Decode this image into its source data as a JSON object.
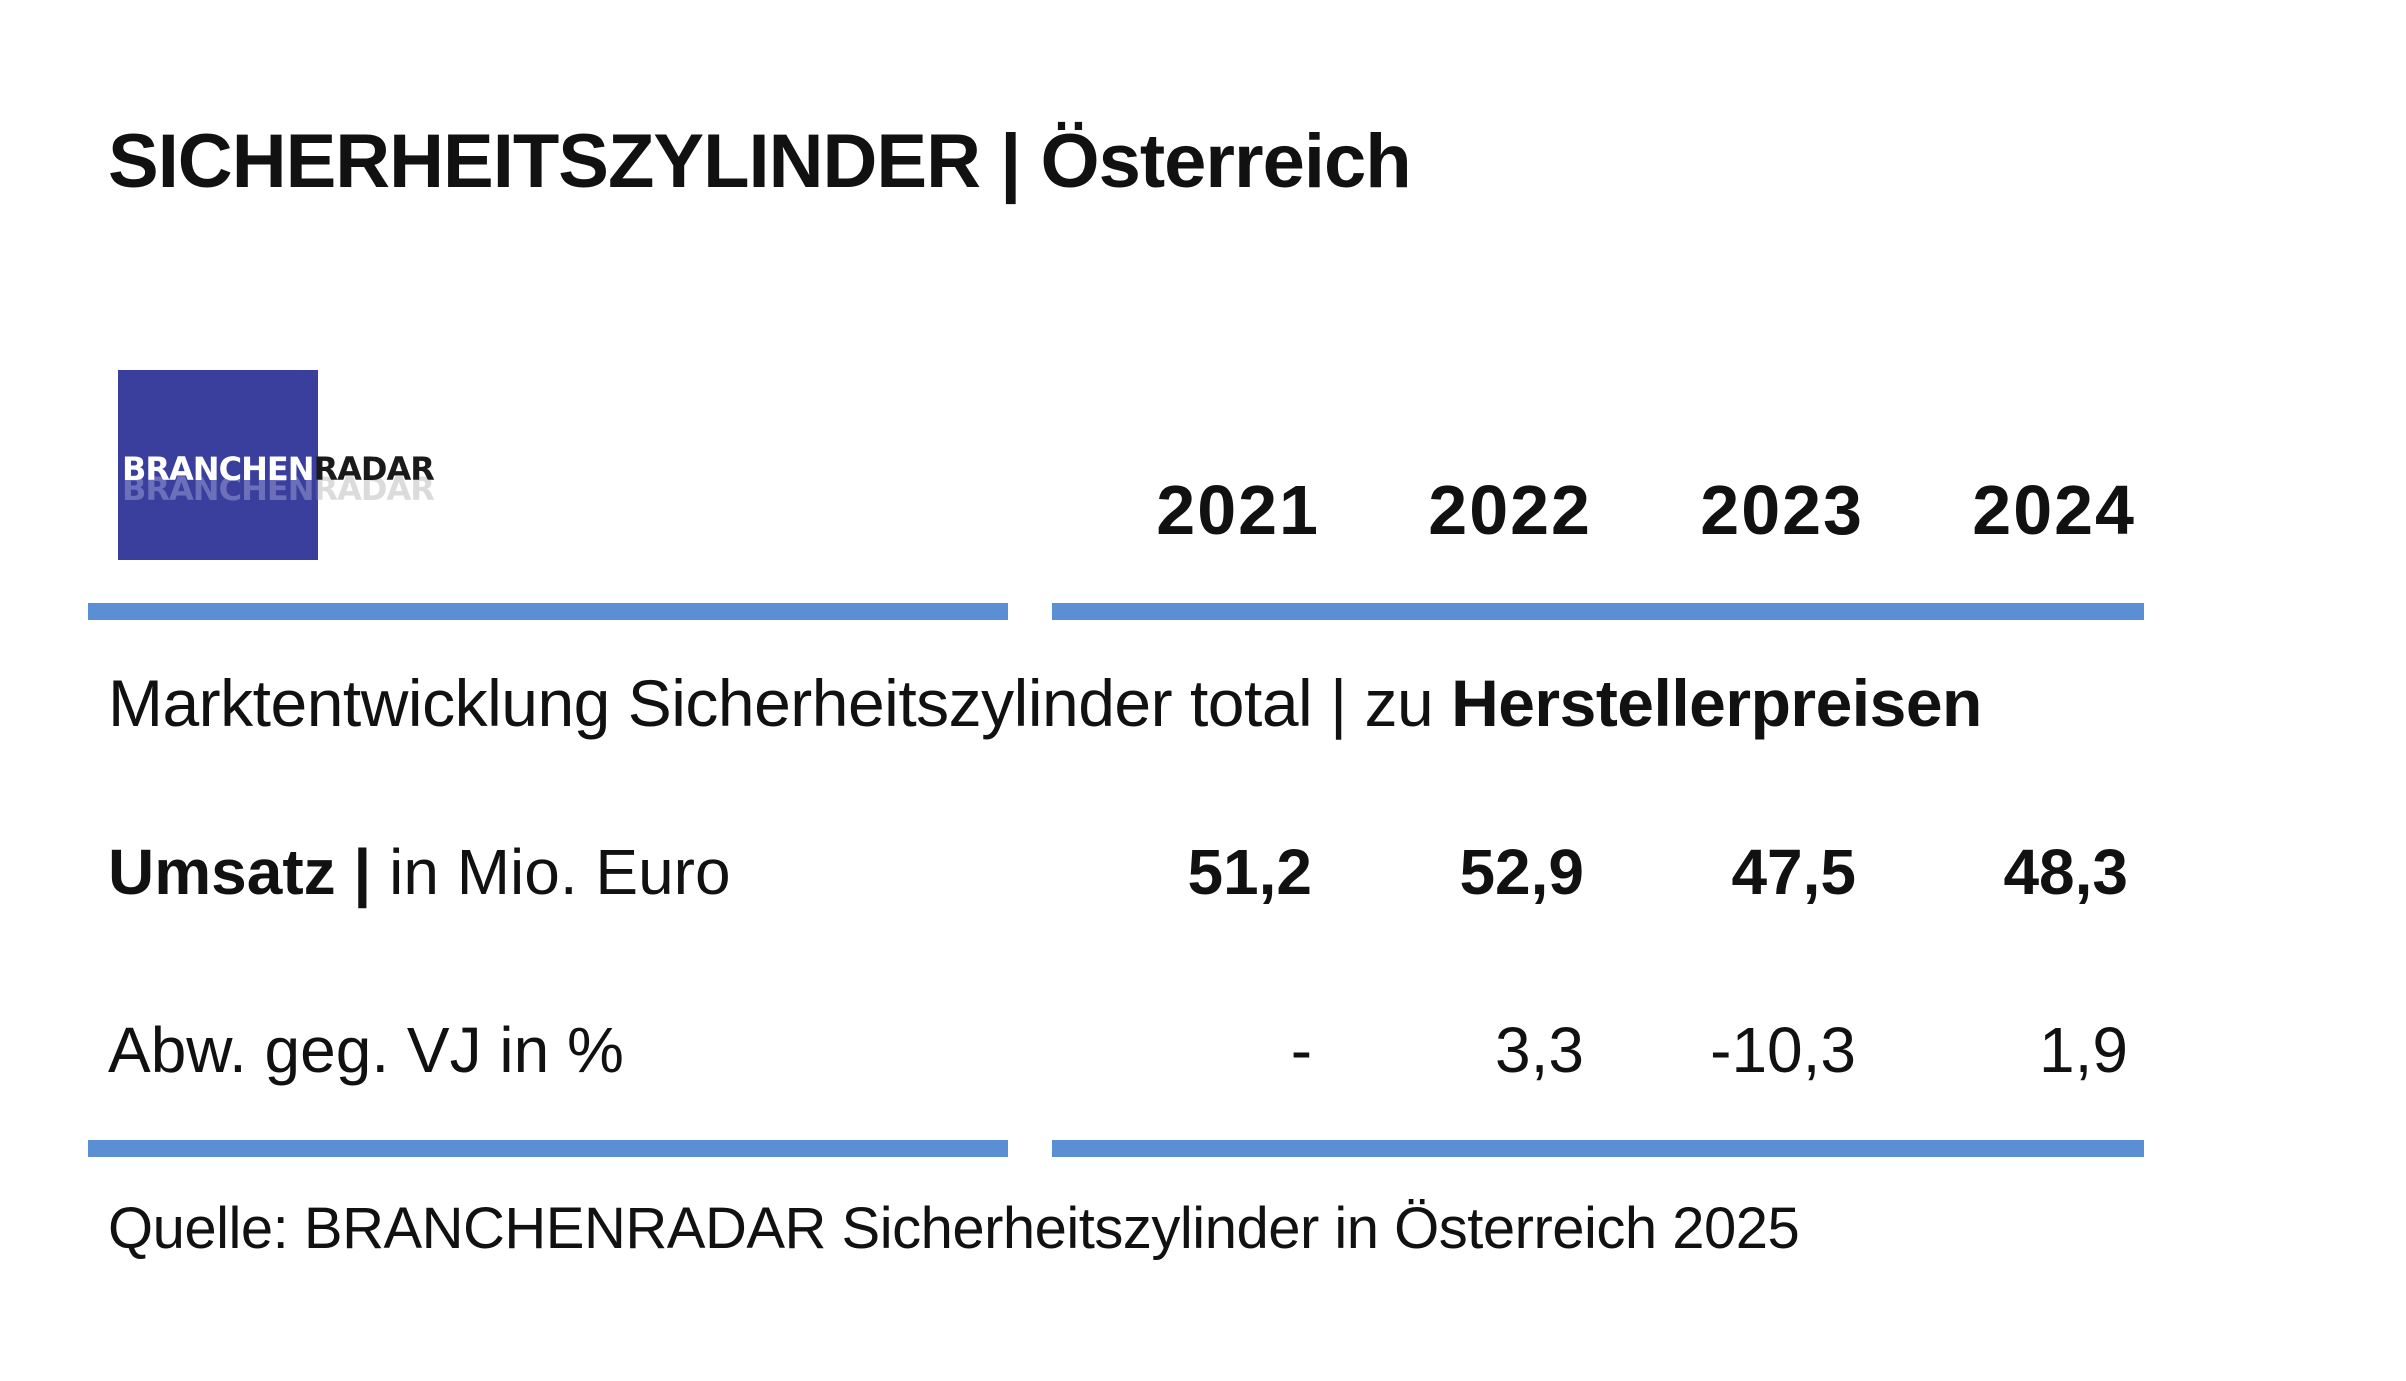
{
  "title": "SICHERHEITSZYLINDER | Österreich",
  "logo": {
    "part1": "BRANCHEN",
    "part2": "RADAR",
    "background_color": "#3a3f9e"
  },
  "rule_color": "#5b8fd4",
  "subheading": {
    "normal": "Marktentwicklung Sicherheitszylinder total | zu ",
    "bold": "Herstellerpreisen"
  },
  "chart_data": {
    "type": "table",
    "columns": [
      "2021",
      "2022",
      "2023",
      "2024"
    ],
    "rows": [
      {
        "label_bold": "Umsatz |",
        "label_normal": " in Mio. Euro",
        "values": [
          "51,2",
          "52,9",
          "47,5",
          "48,3"
        ]
      },
      {
        "label_bold": "",
        "label_normal": "Abw. geg. VJ in %",
        "values": [
          "-",
          "3,3",
          "-10,3",
          "1,9"
        ]
      }
    ]
  },
  "source": "Quelle: BRANCHENRADAR Sicherheitszylinder in Österreich 2025"
}
